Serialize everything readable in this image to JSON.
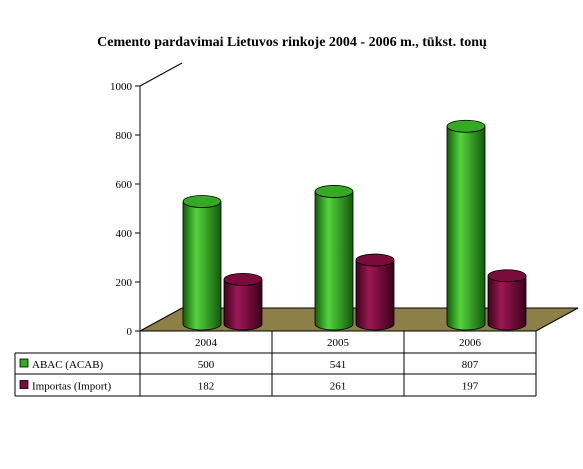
{
  "chart_data": {
    "type": "bar",
    "title": "Cemento pardavimai Lietuvos rinkoje 2004 - 2006 m., tūkst. tonų",
    "categories": [
      "2004",
      "2005",
      "2006"
    ],
    "series": [
      {
        "name": "ABAC (ACAB)",
        "values": [
          500,
          541,
          807
        ]
      },
      {
        "name": "Importas (Import)",
        "values": [
          182,
          261,
          197
        ]
      }
    ],
    "ylim": [
      0,
      1000
    ],
    "yticks": [
      0,
      200,
      400,
      600,
      800,
      1000
    ],
    "ytick_labels": [
      "0",
      "200",
      "400",
      "600",
      "800",
      "1000"
    ],
    "data_table": true,
    "grid": false,
    "style": "3d-cylinder",
    "colors": {
      "series": [
        "#33aa22",
        "#7a0b3c"
      ],
      "floor": "#8c7f47",
      "axis": "#000000"
    }
  }
}
